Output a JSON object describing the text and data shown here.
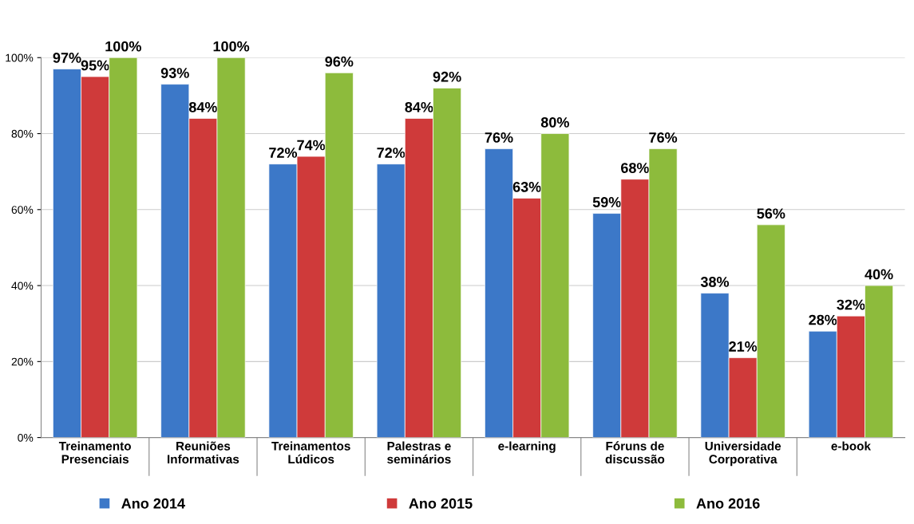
{
  "chart_data": {
    "type": "bar",
    "categories": [
      "Treinamento\nPresenciais",
      "Reuniões\nInformativas",
      "Treinamentos\nLúdicos",
      "Palestras e\nseminários",
      "e-learning",
      "Fóruns de\ndiscussão",
      "Universidade\nCorporativa",
      "e-book"
    ],
    "series": [
      {
        "name": "Ano 2014",
        "color": "#3c78c8",
        "values": [
          97,
          93,
          72,
          72,
          76,
          59,
          38,
          28
        ],
        "value_labels": [
          "97%",
          "93%",
          "72%",
          "72%",
          "76%",
          "59%",
          "38%",
          "28%"
        ]
      },
      {
        "name": "Ano 2015",
        "color": "#cf3a3a",
        "values": [
          95,
          84,
          74,
          84,
          63,
          68,
          21,
          32
        ],
        "value_labels": [
          "95%",
          "84%",
          "74%",
          "84%",
          "63%",
          "68%",
          "21%",
          "32%"
        ]
      },
      {
        "name": "Ano 2016",
        "color": "#8dbb3c",
        "values": [
          100,
          100,
          96,
          92,
          80,
          76,
          56,
          40
        ],
        "value_labels": [
          "100%",
          "100%",
          "96%",
          "92%",
          "80%",
          "76%",
          "56%",
          "40%"
        ]
      }
    ],
    "ylim": [
      0,
      100
    ],
    "yticks": [
      {
        "value": 0,
        "label": "0%"
      },
      {
        "value": 20,
        "label": "20%"
      },
      {
        "value": 40,
        "label": "40%"
      },
      {
        "value": 60,
        "label": "60%"
      },
      {
        "value": 80,
        "label": "80%"
      },
      {
        "value": 100,
        "label": "100%"
      }
    ],
    "grid": "y",
    "legend": "bottom"
  }
}
